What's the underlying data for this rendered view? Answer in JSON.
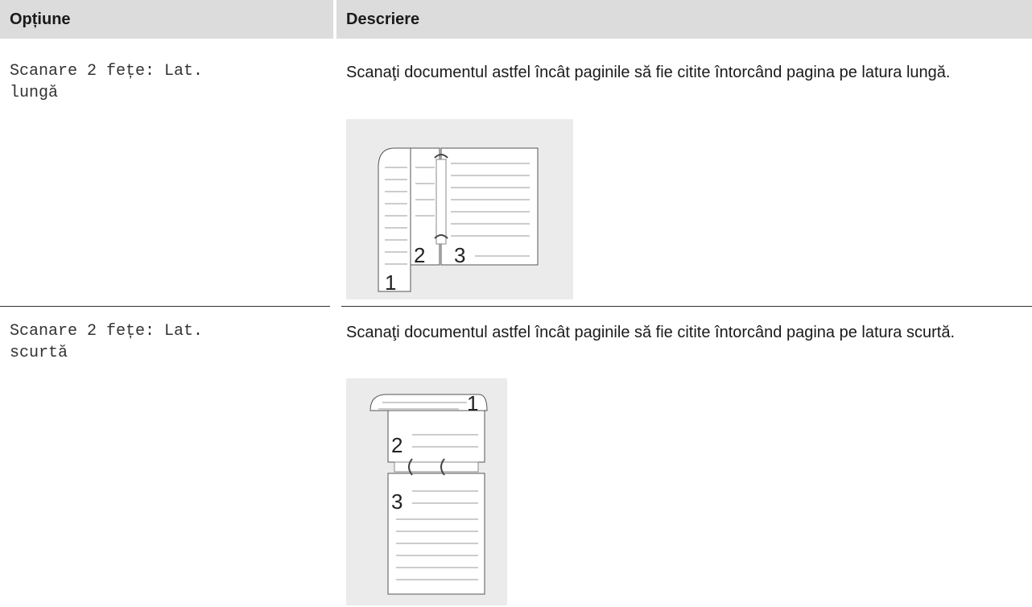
{
  "table": {
    "header": [
      "Opțiune",
      "Descriere"
    ],
    "rows": [
      {
        "option": "Scanare 2 fețe: Lat. lungă",
        "description": "Scanaţi documentul astfel încât paginile să fie citite întorcând pagina pe latura lungă.",
        "figure_labels": [
          "1",
          "2",
          "3"
        ]
      },
      {
        "option": "Scanare 2 fețe: Lat. scurtă",
        "description": "Scanaţi documentul astfel încât paginile să fie citite întorcând pagina pe latura scurtă.",
        "figure_labels": [
          "1",
          "2",
          "3"
        ]
      }
    ]
  }
}
